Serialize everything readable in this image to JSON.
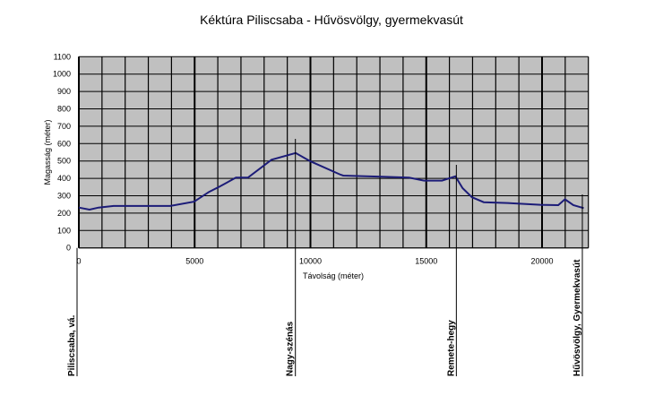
{
  "chart_data": {
    "type": "line",
    "title": "Kéktúra Piliscsaba - Hűvösvölgy, gyermekvasút",
    "xlabel": "Távolság (méter)",
    "ylabel": "Magasság (méter)",
    "xlim": [
      0,
      22000
    ],
    "ylim": [
      0,
      1100
    ],
    "x_ticks": [
      0,
      5000,
      10000,
      15000,
      20000
    ],
    "y_ticks": [
      0,
      100,
      200,
      300,
      400,
      500,
      600,
      700,
      800,
      900,
      1000,
      1100
    ],
    "x_grid_step": 1000,
    "y_grid_step": 100,
    "grid": true,
    "plot_background": "#c0c0c0",
    "line_color": "#1c1c78",
    "series": [
      {
        "x": [
          0,
          460,
          850,
          1500,
          3950,
          4980,
          5620,
          6070,
          6780,
          7300,
          8320,
          9360,
          10000,
          11300,
          11420,
          13230,
          14260,
          14900,
          15680,
          16260,
          16570,
          16970,
          17480,
          18520,
          19930,
          20700,
          20990,
          21350,
          21800
        ],
        "y": [
          232,
          220,
          232,
          241,
          241,
          266,
          322,
          352,
          404,
          404,
          507,
          546,
          498,
          421,
          416,
          409,
          404,
          387,
          387,
          412,
          344,
          292,
          263,
          258,
          248,
          246,
          280,
          246,
          229
        ]
      }
    ],
    "markers": [
      {
        "label": "Piliscsaba, vá.",
        "x": 0,
        "top": 0
      },
      {
        "label": "Nagy-szénás",
        "x": 9350,
        "top": 627
      },
      {
        "label": "Remete-hegy",
        "x": 16300,
        "top": 478
      },
      {
        "label": "Hűvösvölgy, Gyermekvasút",
        "x": 21740,
        "top": 308
      }
    ]
  }
}
